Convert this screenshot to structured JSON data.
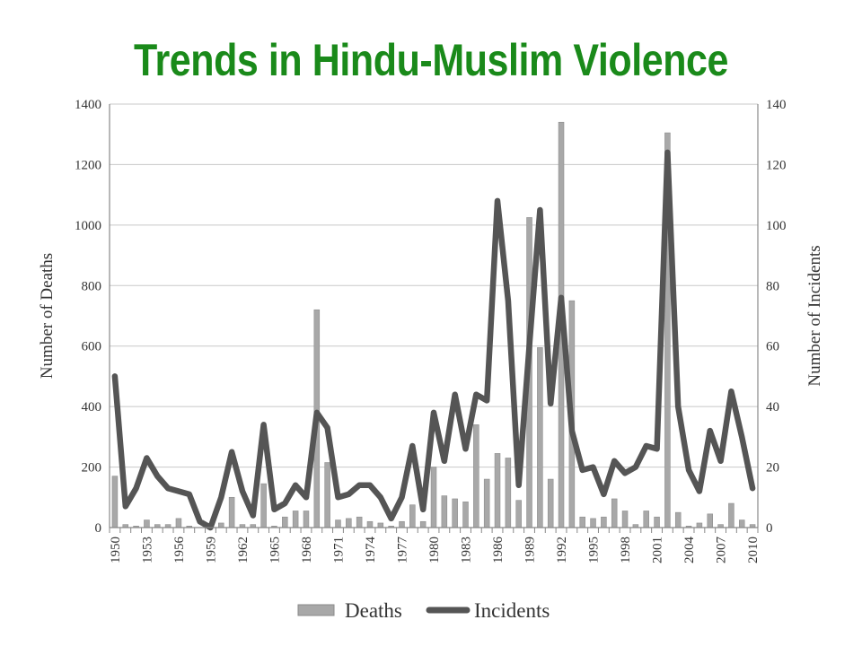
{
  "page": {
    "title": "Trends in Hindu-Muslim Violence"
  },
  "chart_data": {
    "type": "bar+line",
    "xlabel": "",
    "ylabel_left": "Number of Deaths",
    "ylabel_right": "Number of Incidents",
    "ylim_left": [
      0,
      1400
    ],
    "ylim_right": [
      0,
      140
    ],
    "yticks_left": [
      0,
      200,
      400,
      600,
      800,
      1000,
      1200,
      1400
    ],
    "yticks_right": [
      0,
      20,
      40,
      60,
      80,
      100,
      120,
      140
    ],
    "grid": true,
    "legend_position": "bottom",
    "x": [
      1950,
      1951,
      1952,
      1953,
      1954,
      1955,
      1956,
      1957,
      1958,
      1959,
      1960,
      1961,
      1962,
      1963,
      1964,
      1965,
      1966,
      1967,
      1968,
      1969,
      1970,
      1971,
      1972,
      1973,
      1974,
      1975,
      1976,
      1977,
      1978,
      1979,
      1980,
      1981,
      1982,
      1983,
      1984,
      1985,
      1986,
      1987,
      1988,
      1989,
      1990,
      1991,
      1992,
      1993,
      1994,
      1995,
      1996,
      1997,
      1998,
      1999,
      2000,
      2001,
      2002,
      2003,
      2004,
      2005,
      2006,
      2007,
      2008,
      2009,
      2010
    ],
    "x_tick_labels": [
      "1950",
      "1953",
      "1956",
      "1959",
      "1962",
      "1965",
      "1968",
      "1971",
      "1974",
      "1977",
      "1980",
      "1983",
      "1986",
      "1989",
      "1992",
      "1995",
      "1998",
      "2001",
      "2004",
      "2007",
      "2010"
    ],
    "series": [
      {
        "name": "Deaths",
        "type": "bar",
        "axis": "left",
        "color": "#a8a8a8",
        "values": [
          170,
          10,
          5,
          25,
          10,
          10,
          30,
          5,
          0,
          0,
          15,
          100,
          10,
          10,
          145,
          5,
          35,
          55,
          55,
          720,
          215,
          25,
          30,
          35,
          20,
          15,
          5,
          20,
          75,
          20,
          200,
          105,
          95,
          85,
          340,
          160,
          245,
          230,
          90,
          1025,
          595,
          160,
          1340,
          750,
          35,
          30,
          35,
          95,
          55,
          10,
          55,
          35,
          1305,
          50,
          5,
          15,
          45,
          10,
          80,
          25,
          10
        ]
      },
      {
        "name": "Incidents",
        "type": "line",
        "axis": "right",
        "color": "#555555",
        "values": [
          50,
          7,
          13,
          23,
          17,
          13,
          12,
          11,
          2,
          0,
          10,
          25,
          12,
          4,
          34,
          6,
          8,
          14,
          10,
          38,
          33,
          10,
          11,
          14,
          14,
          10,
          3,
          10,
          27,
          6,
          38,
          22,
          44,
          26,
          44,
          42,
          108,
          75,
          14,
          60,
          105,
          41,
          76,
          32,
          19,
          20,
          11,
          22,
          18,
          20,
          27,
          26,
          124,
          40,
          19,
          12,
          32,
          22,
          45,
          30,
          13
        ]
      }
    ]
  }
}
